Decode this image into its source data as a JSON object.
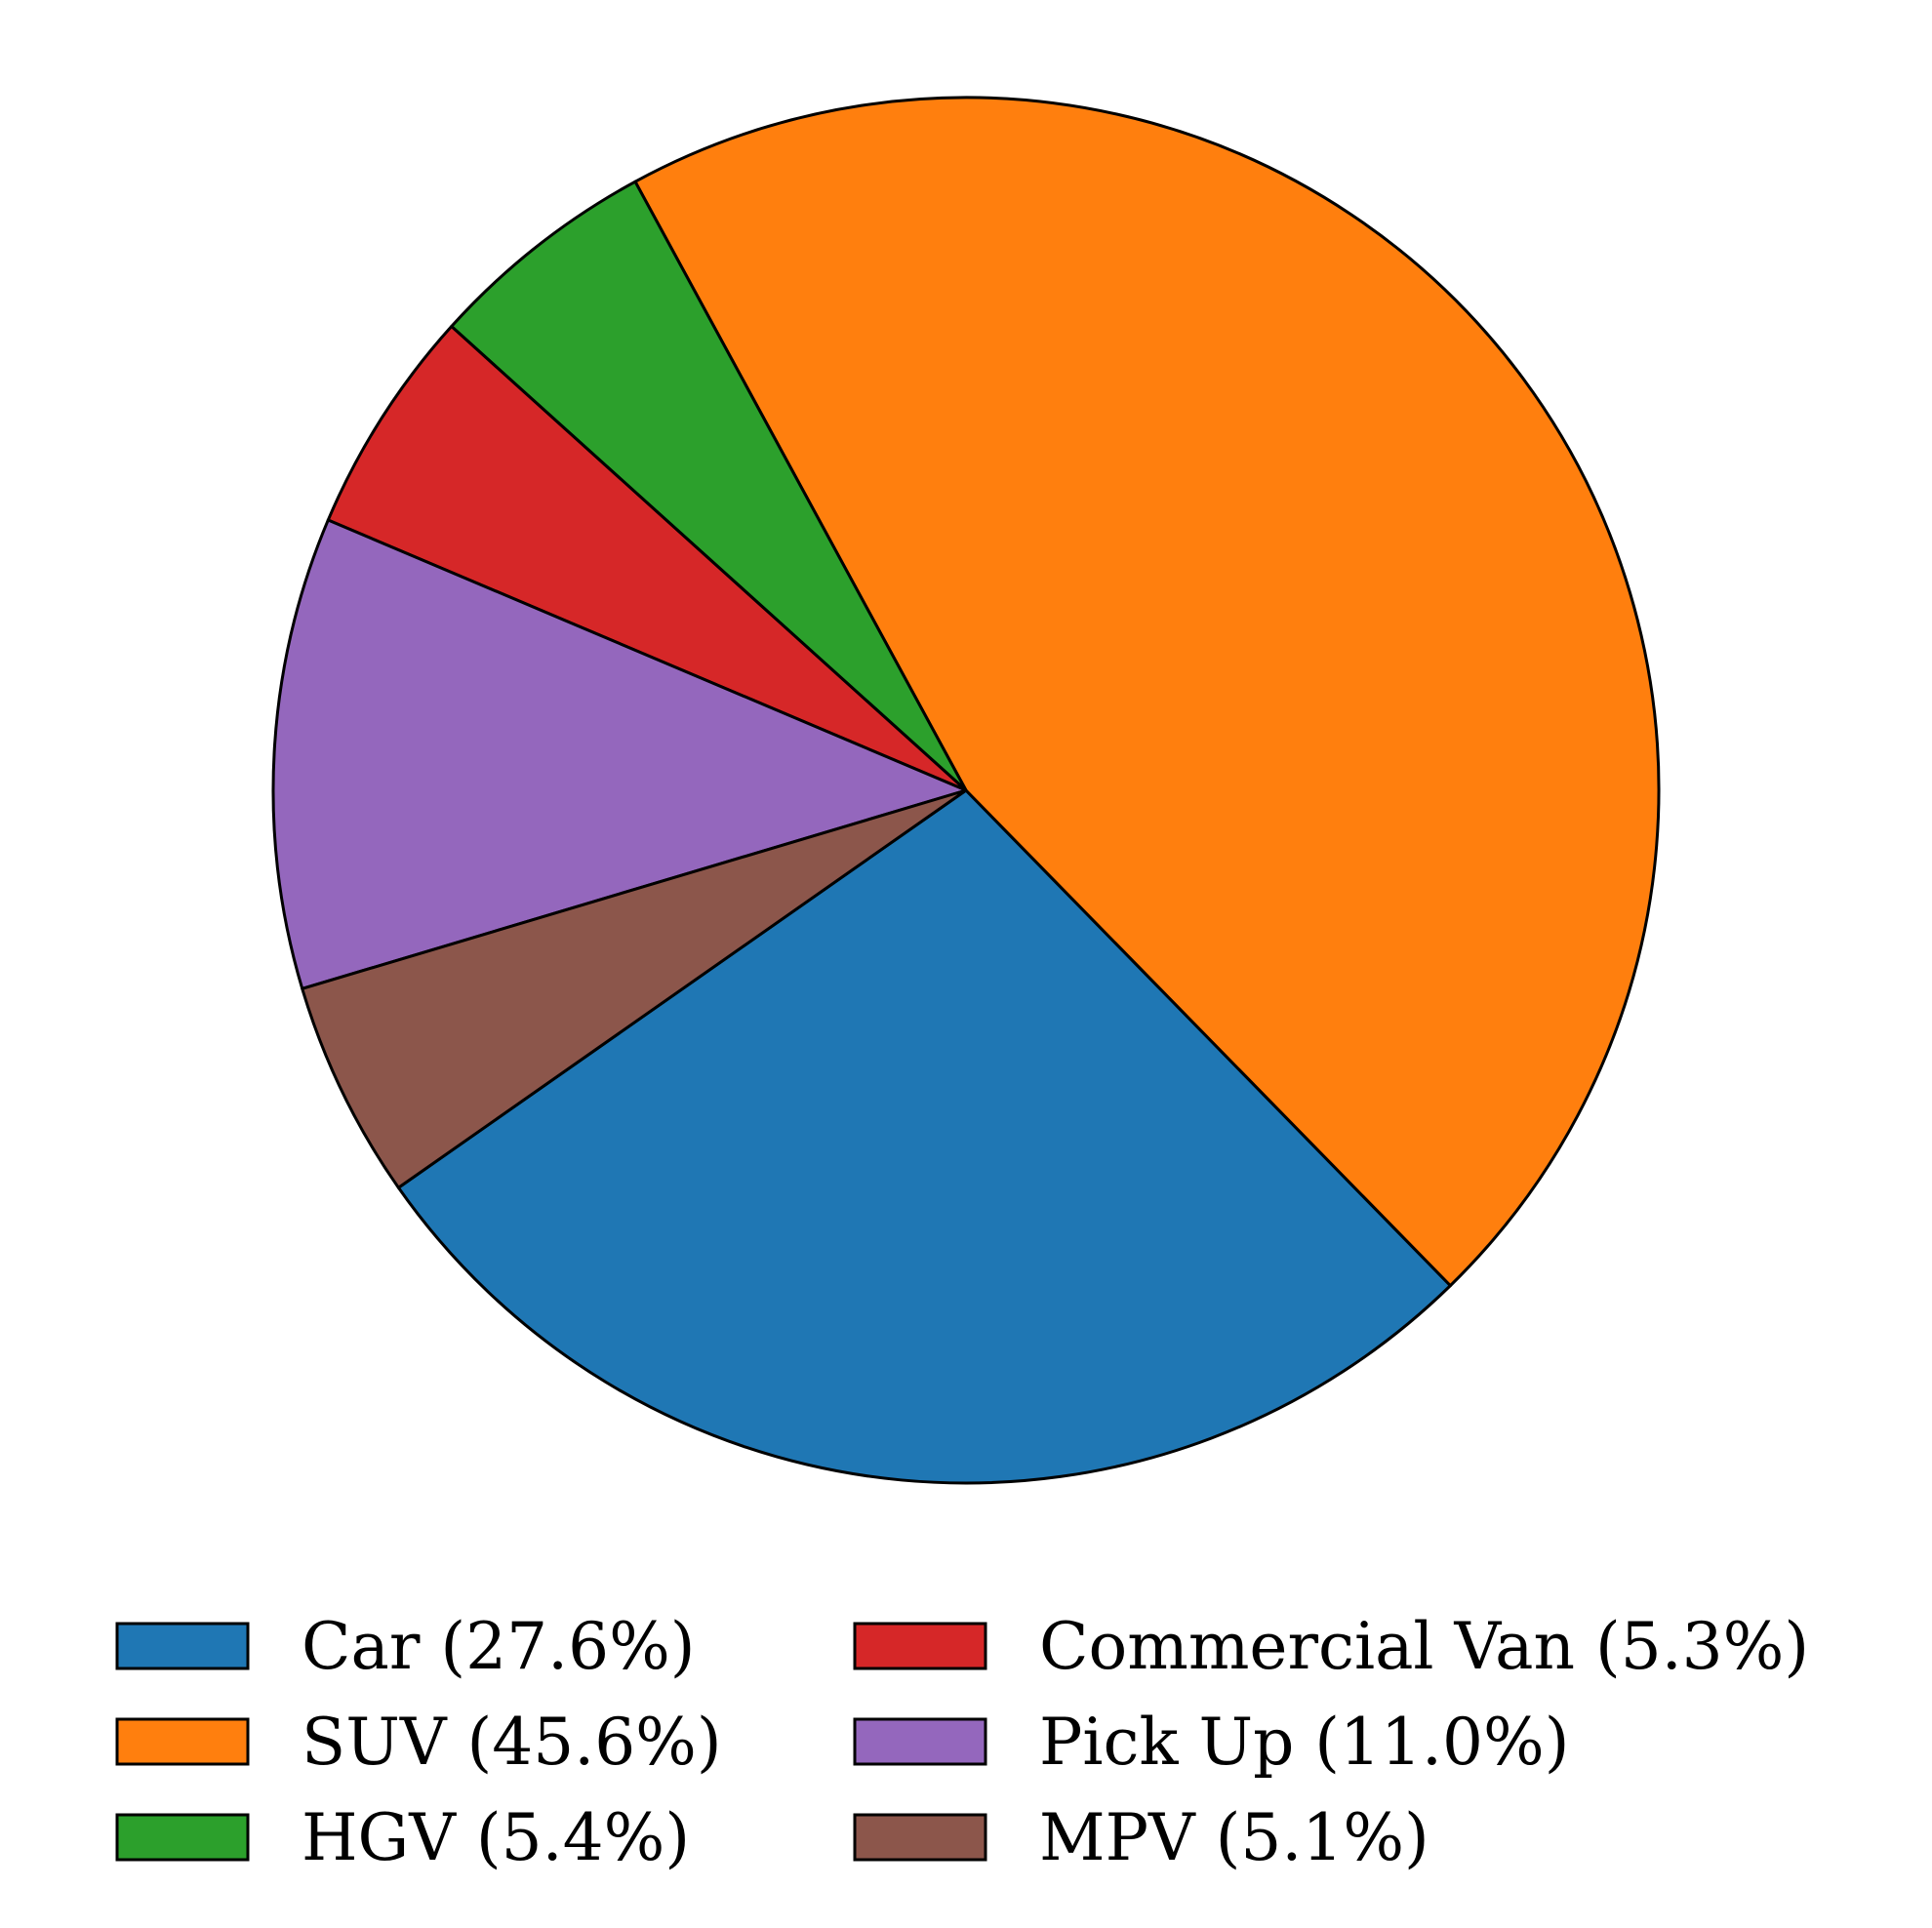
{
  "chart_data": {
    "type": "pie",
    "start_angle_deg": 215,
    "direction": "counterclockwise",
    "slices": [
      {
        "label": "Car",
        "value": 27.6,
        "color": "#1f77b4",
        "legend_text": "Car (27.6%)"
      },
      {
        "label": "SUV",
        "value": 45.6,
        "color": "#ff7f0e",
        "legend_text": "SUV (45.6%)"
      },
      {
        "label": "HGV",
        "value": 5.4,
        "color": "#2ca02c",
        "legend_text": "HGV (5.4%)"
      },
      {
        "label": "Commercial Van",
        "value": 5.3,
        "color": "#d62728",
        "legend_text": "Commercial Van (5.3%)"
      },
      {
        "label": "Pick Up",
        "value": 11.0,
        "color": "#9467bd",
        "legend_text": "Pick Up (11.0%)"
      },
      {
        "label": "MPV",
        "value": 5.1,
        "color": "#8c564b",
        "legend_text": "MPV (5.1%)"
      }
    ],
    "legend": {
      "position": "bottom",
      "columns": 2
    }
  }
}
